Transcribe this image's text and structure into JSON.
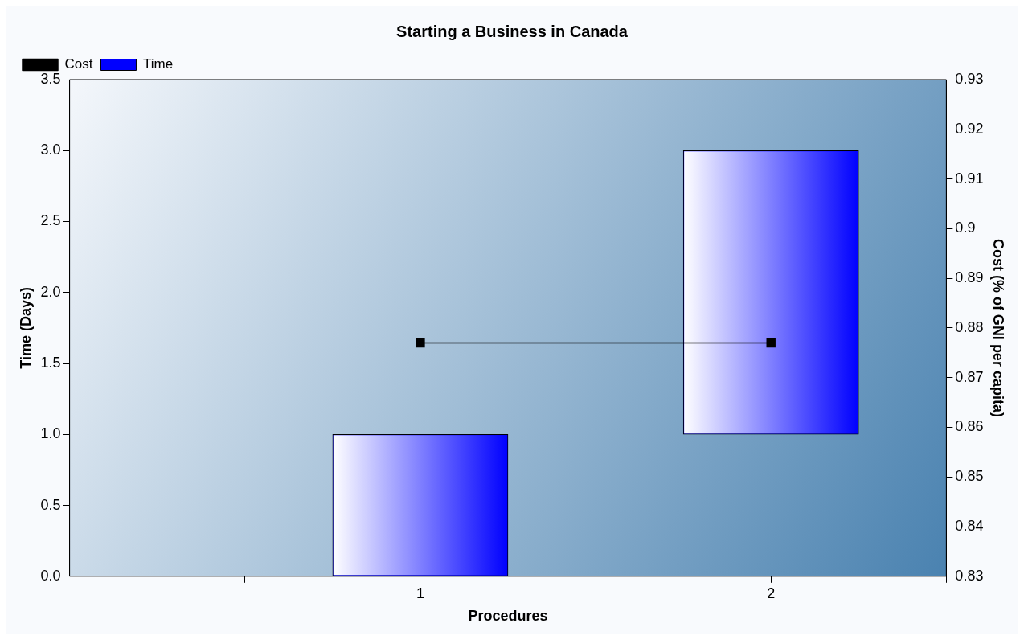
{
  "chart_data": {
    "type": "bar",
    "title": "Starting a Business in Canada",
    "xlabel": "Procedures",
    "ylabel": "Time (Days)",
    "y2label": "Cost (% of GNI per capita)",
    "x": [
      1,
      2
    ],
    "xlim": [
      0,
      2.5
    ],
    "xticks": [
      {
        "value": 0.5,
        "label": null
      },
      1,
      {
        "value": 1.5,
        "label": null
      },
      2,
      {
        "value": 2.5,
        "label": null
      }
    ],
    "ylim": [
      0,
      3.5
    ],
    "yticks": [
      {
        "value": 0,
        "label": "0.0"
      },
      0.5,
      {
        "value": 1,
        "label": "1.0"
      },
      1.5,
      {
        "value": 2,
        "label": "2.0"
      },
      2.5,
      {
        "value": 3,
        "label": "3.0"
      },
      3.5
    ],
    "y2lim": [
      0.83,
      0.93
    ],
    "y2ticks": [
      0.83,
      0.84,
      0.85,
      0.86,
      0.87,
      0.88,
      0.89,
      0.9,
      0.91,
      0.92,
      0.93
    ],
    "series": [
      {
        "name": "Cost",
        "type": "line",
        "axis": "y2",
        "color": "#000000",
        "values": [
          0.877,
          0.877
        ],
        "marker": "square"
      },
      {
        "name": "Time",
        "color": "#0000ff",
        "base": [
          0,
          1
        ],
        "values": [
          1,
          2
        ]
      }
    ],
    "legend": "top left",
    "grid": false
  }
}
